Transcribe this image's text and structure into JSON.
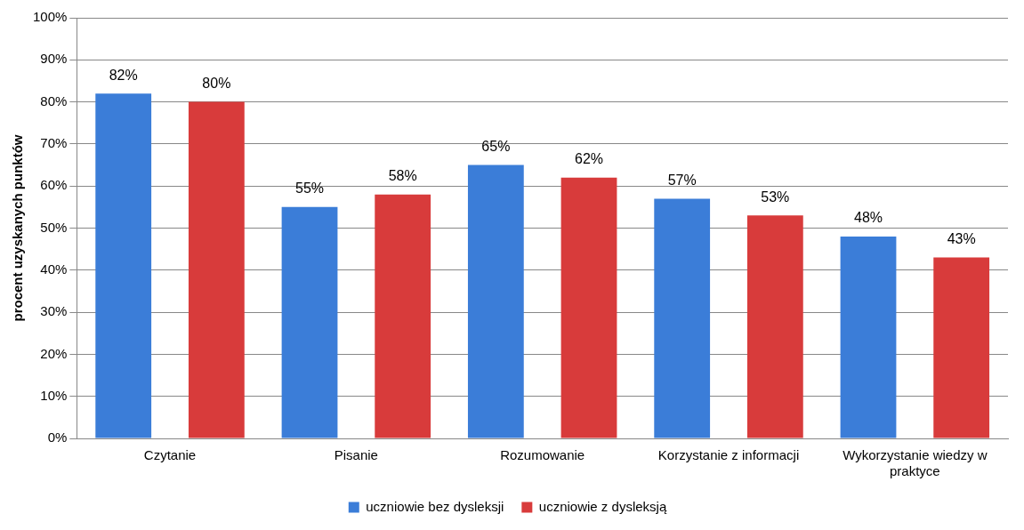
{
  "chart_data": {
    "type": "bar",
    "ylabel": "procent uzyskanych punktów",
    "categories": [
      "Czytanie",
      "Pisanie",
      "Rozumowanie",
      "Korzystanie z informacji",
      "Wykorzystanie wiedzy w praktyce"
    ],
    "series": [
      {
        "name": "uczniowie bez dysleksji",
        "color": "#3b7dd8",
        "values": [
          82,
          55,
          65,
          57,
          48
        ],
        "value_labels": [
          "82%",
          "55%",
          "65%",
          "57%",
          "48%"
        ]
      },
      {
        "name": "uczniowie z dysleksją",
        "color": "#d83b3b",
        "values": [
          80,
          58,
          62,
          53,
          43
        ],
        "value_labels": [
          "80%",
          "58%",
          "62%",
          "53%",
          "43%"
        ]
      }
    ],
    "ylim": [
      0,
      100
    ],
    "yticks": [
      {
        "value": 0,
        "label": "0%"
      },
      {
        "value": 10,
        "label": "10%"
      },
      {
        "value": 20,
        "label": "20%"
      },
      {
        "value": 30,
        "label": "30%"
      },
      {
        "value": 40,
        "label": "40%"
      },
      {
        "value": 50,
        "label": "50%"
      },
      {
        "value": 60,
        "label": "60%"
      },
      {
        "value": 70,
        "label": "70%"
      },
      {
        "value": 80,
        "label": "80%"
      },
      {
        "value": 90,
        "label": "90%"
      },
      {
        "value": 100,
        "label": "100%"
      }
    ],
    "grid": "y",
    "legend": "bottom"
  }
}
